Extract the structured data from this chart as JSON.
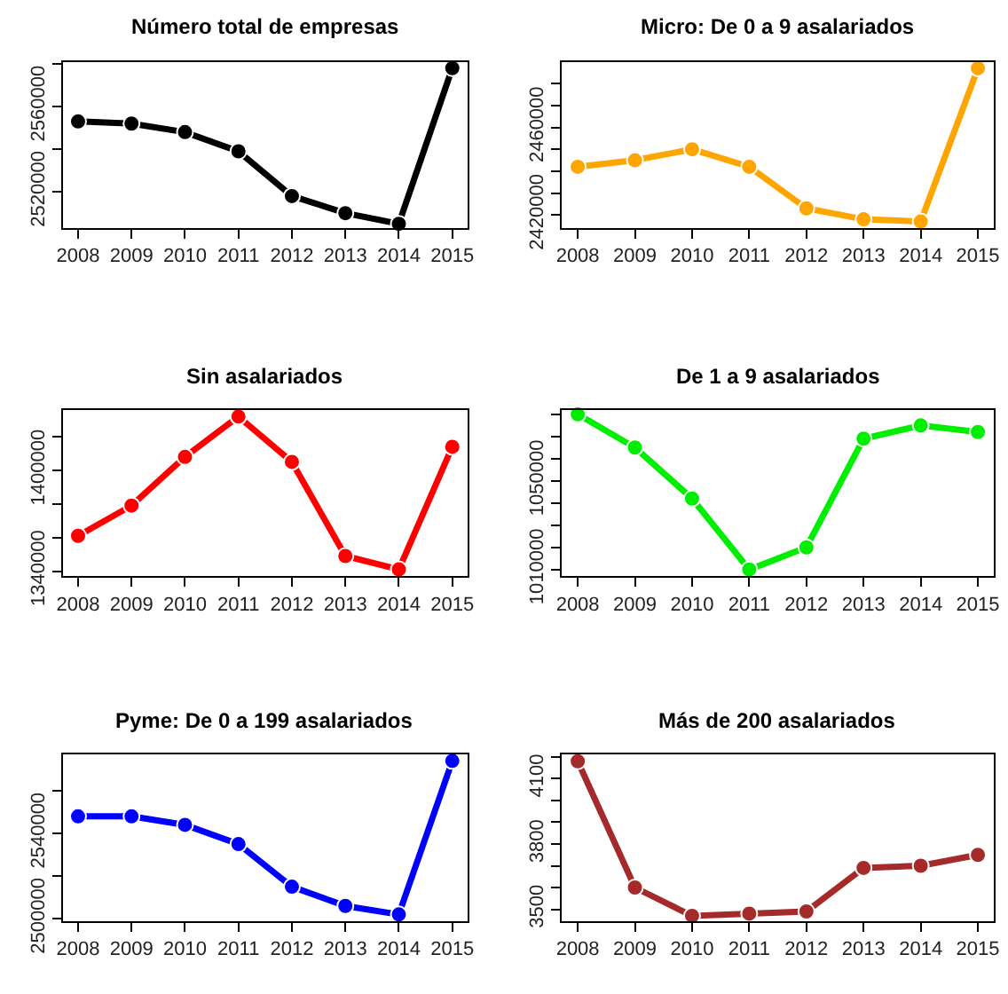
{
  "chart_data": [
    {
      "type": "line",
      "title": "Número total de empresas",
      "x": [
        2008,
        2009,
        2010,
        2011,
        2012,
        2013,
        2014,
        2015
      ],
      "xlim": [
        2007.72,
        2015.28
      ],
      "xticks": [
        2008,
        2009,
        2010,
        2011,
        2012,
        2013,
        2014,
        2015
      ],
      "ylim": [
        2503000,
        2581000
      ],
      "yticks": [
        2520000,
        {
          "value": 2540000,
          "label": null
        },
        2560000,
        {
          "value": 2580000,
          "label": null
        }
      ],
      "marker": "circle",
      "line_style": "solid",
      "series": [
        {
          "color": "#000000",
          "values": [
            2553000,
            2552000,
            2548000,
            2539000,
            2518000,
            2510000,
            2505000,
            2578000
          ]
        }
      ]
    },
    {
      "type": "line",
      "title": "Micro: De 0 a 9 asalariados",
      "x": [
        2008,
        2009,
        2010,
        2011,
        2012,
        2013,
        2014,
        2015
      ],
      "xlim": [
        2007.72,
        2015.28
      ],
      "xticks": [
        2008,
        2009,
        2010,
        2011,
        2012,
        2013,
        2014,
        2015
      ],
      "ylim": [
        2414000,
        2490000
      ],
      "yticks": [
        2420000,
        {
          "value": 2430000,
          "label": null
        },
        {
          "value": 2440000,
          "label": null
        },
        {
          "value": 2450000,
          "label": null
        },
        2460000,
        {
          "value": 2470000,
          "label": null
        },
        {
          "value": 2480000,
          "label": null
        }
      ],
      "marker": "circle",
      "line_style": "solid",
      "series": [
        {
          "color": "#ffa500",
          "values": [
            2442000,
            2445000,
            2450000,
            2442000,
            2423000,
            2418000,
            2417000,
            2487000
          ]
        }
      ]
    },
    {
      "type": "line",
      "title": "Sin asalariados",
      "x": [
        2008,
        2009,
        2010,
        2011,
        2012,
        2013,
        2014,
        2015
      ],
      "xlim": [
        2007.72,
        2015.28
      ],
      "xticks": [
        2008,
        2009,
        2010,
        2011,
        2012,
        2013,
        2014,
        2015
      ],
      "ylim": [
        1337000,
        1436000
      ],
      "yticks": [
        1340000,
        {
          "value": 1360000,
          "label": null
        },
        {
          "value": 1380000,
          "label": null
        },
        1400000,
        {
          "value": 1420000,
          "label": null
        }
      ],
      "marker": "circle",
      "line_style": "solid",
      "series": [
        {
          "color": "#ff0000",
          "values": [
            1361000,
            1379000,
            1408000,
            1432000,
            1405000,
            1349000,
            1341000,
            1414000
          ]
        }
      ]
    },
    {
      "type": "line",
      "title": "De 1 a 9 asalariados",
      "x": [
        2008,
        2009,
        2010,
        2011,
        2012,
        2013,
        2014,
        2015
      ],
      "xlim": [
        2007.72,
        2015.28
      ],
      "xticks": [
        2008,
        2009,
        2010,
        2011,
        2012,
        2013,
        2014,
        2015
      ],
      "ylim": [
        1007000,
        1082000
      ],
      "yticks": [
        1010000,
        {
          "value": 1020000,
          "label": null
        },
        {
          "value": 1030000,
          "label": null
        },
        {
          "value": 1040000,
          "label": null
        },
        1050000,
        {
          "value": 1060000,
          "label": null
        },
        {
          "value": 1070000,
          "label": null
        },
        {
          "value": 1080000,
          "label": null
        }
      ],
      "marker": "circle",
      "line_style": "solid",
      "series": [
        {
          "color": "#00ee00",
          "values": [
            1080000,
            1065000,
            1042000,
            1010000,
            1020000,
            1069000,
            1075000,
            1072000
          ]
        }
      ]
    },
    {
      "type": "line",
      "title": "Pyme: De 0 a 199 asalariados",
      "x": [
        2008,
        2009,
        2010,
        2011,
        2012,
        2013,
        2014,
        2015
      ],
      "xlim": [
        2007.72,
        2015.28
      ],
      "xticks": [
        2008,
        2009,
        2010,
        2011,
        2012,
        2013,
        2014,
        2015
      ],
      "ylim": [
        2499000,
        2577000
      ],
      "yticks": [
        2500000,
        {
          "value": 2520000,
          "label": null
        },
        2540000,
        {
          "value": 2560000,
          "label": null
        }
      ],
      "marker": "circle",
      "line_style": "solid",
      "series": [
        {
          "color": "#0000ff",
          "values": [
            2548000,
            2548000,
            2544000,
            2535000,
            2515000,
            2506000,
            2502000,
            2574000
          ]
        }
      ]
    },
    {
      "type": "line",
      "title": "Más de 200 asalariados",
      "x": [
        2008,
        2009,
        2010,
        2011,
        2012,
        2013,
        2014,
        2015
      ],
      "xlim": [
        2007.72,
        2015.28
      ],
      "xticks": [
        2008,
        2009,
        2010,
        2011,
        2012,
        2013,
        2014,
        2015
      ],
      "ylim": [
        3447,
        4211
      ],
      "yticks": [
        3500,
        {
          "value": 3600,
          "label": null
        },
        {
          "value": 3700,
          "label": null
        },
        3800,
        {
          "value": 3900,
          "label": null
        },
        {
          "value": 4000,
          "label": null
        },
        4100,
        {
          "value": 4200,
          "label": null
        }
      ],
      "marker": "circle",
      "line_style": "solid",
      "series": [
        {
          "color": "#a52a2a",
          "values": [
            4180,
            3600,
            3470,
            3480,
            3490,
            3690,
            3700,
            3750
          ]
        }
      ]
    }
  ]
}
